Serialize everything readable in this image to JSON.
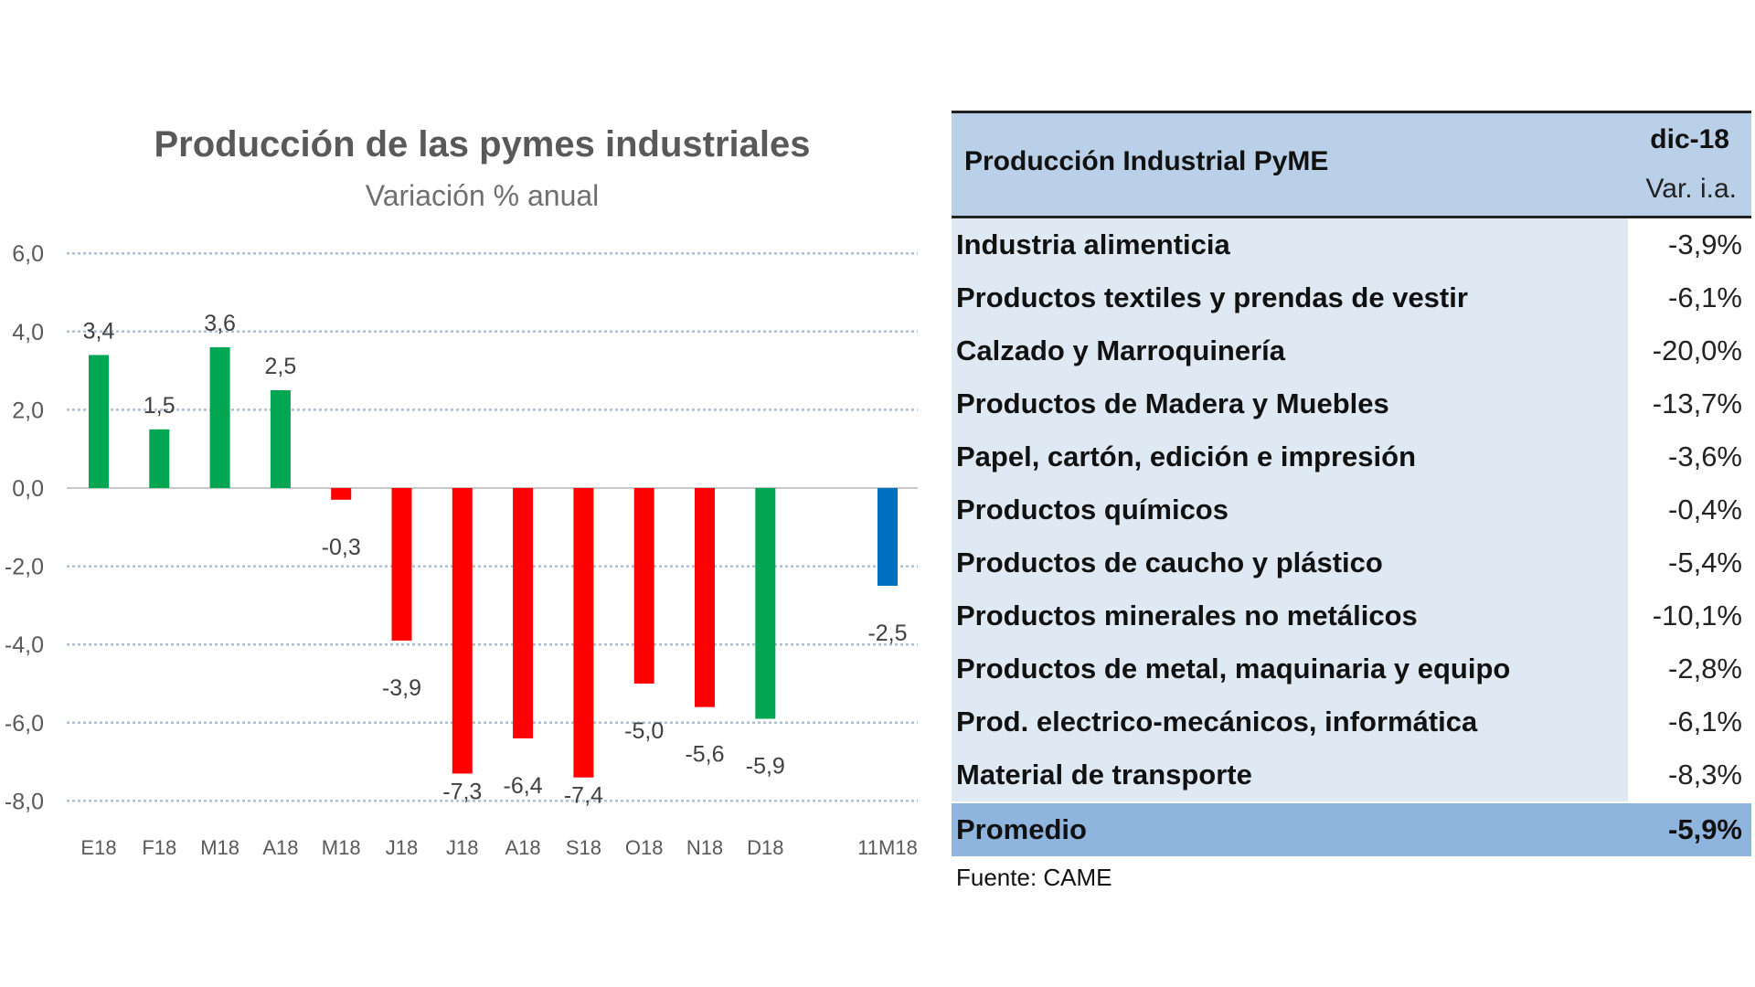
{
  "chart_data": {
    "type": "bar",
    "title": "Producción de las pymes industriales",
    "subtitle": "Variación % anual",
    "categories": [
      "E18",
      "F18",
      "M18",
      "A18",
      "M18",
      "J18",
      "J18",
      "A18",
      "S18",
      "O18",
      "N18",
      "D18",
      "11M18"
    ],
    "values": [
      3.4,
      1.5,
      3.6,
      2.5,
      -0.3,
      -3.9,
      -7.3,
      -6.4,
      -7.4,
      -5.0,
      -5.6,
      -5.9,
      -2.5
    ],
    "data_labels": [
      "3,4",
      "1,5",
      "3,6",
      "2,5",
      "-0,3",
      "-3,9",
      "-7,3",
      "-6,4",
      "-7,4",
      "-5,0",
      "-5,6",
      "-5,9",
      "-2,5"
    ],
    "bar_colors": [
      "#00a651",
      "#00a651",
      "#00a651",
      "#00a651",
      "#ff0000",
      "#ff0000",
      "#ff0000",
      "#ff0000",
      "#ff0000",
      "#ff0000",
      "#ff0000",
      "#00a651",
      "#0070c0"
    ],
    "ylim": [
      -8,
      6
    ],
    "yticks": [
      "6,0",
      "4,0",
      "2,0",
      "0,0",
      "-2,0",
      "-4,0",
      "-6,0",
      "-8,0"
    ],
    "ytick_values": [
      6,
      4,
      2,
      0,
      -2,
      -4,
      -6,
      -8
    ],
    "grid": true,
    "xlabel": "",
    "ylabel": ""
  },
  "table": {
    "title": "Producción Industrial PyME",
    "period": "dic-18",
    "column": "Var. i.a.",
    "rows": [
      {
        "label": "Industria alimenticia",
        "value": "-3,9%"
      },
      {
        "label": "Productos textiles y prendas de vestir",
        "value": "-6,1%"
      },
      {
        "label": "Calzado y Marroquinería",
        "value": "-20,0%"
      },
      {
        "label": "Productos de Madera y Muebles",
        "value": "-13,7%"
      },
      {
        "label": "Papel, cartón, edición e impresión",
        "value": "-3,6%"
      },
      {
        "label": "Productos químicos",
        "value": "-0,4%"
      },
      {
        "label": "Productos de caucho y plástico",
        "value": "-5,4%"
      },
      {
        "label": "Productos minerales no metálicos",
        "value": "-10,1%"
      },
      {
        "label": "Productos de metal, maquinaria y equipo",
        "value": "-2,8%"
      },
      {
        "label": "Prod. electrico-mecánicos, informática",
        "value": "-6,1%"
      },
      {
        "label": "Material de transporte",
        "value": "-8,3%"
      }
    ],
    "average": {
      "label": "Promedio",
      "value": "-5,9%"
    },
    "source": "Fuente: CAME"
  }
}
